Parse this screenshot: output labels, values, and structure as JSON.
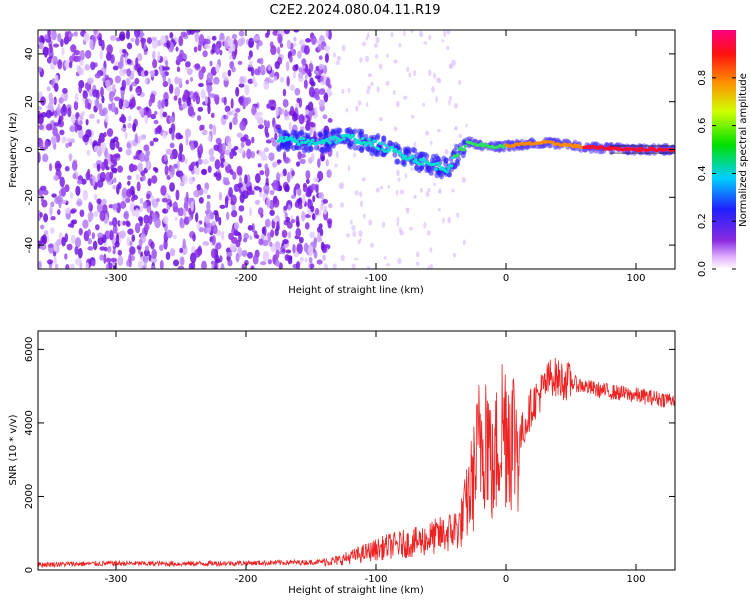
{
  "figure": {
    "title": "C2E2.2024.080.04.11.R19"
  },
  "colors": {
    "background": "#ffffff",
    "axis": "#000000",
    "snr_line": "#ee2222",
    "ridge_line": "#000000"
  },
  "chart_data": [
    {
      "type": "heatmap",
      "title": "",
      "xlabel": "Height of straight line (km)",
      "ylabel": "Frequency (Hz)",
      "xlim": [
        -360,
        130
      ],
      "ylim": [
        -50,
        50
      ],
      "x_ticks": [
        -300,
        -200,
        -100,
        0,
        100
      ],
      "y_ticks": [
        -40,
        -20,
        0,
        20,
        40
      ],
      "colormap": "rainbow (white-purple-blue-cyan-green-yellow-orange-red-magenta)",
      "noise_region_x": [
        -360,
        -135
      ],
      "sparse_region_x": [
        -135,
        -30
      ],
      "signal_ridge": [
        {
          "x": -175,
          "y": 4
        },
        {
          "x": -150,
          "y": 3
        },
        {
          "x": -120,
          "y": 5
        },
        {
          "x": -100,
          "y": 2
        },
        {
          "x": -80,
          "y": -2
        },
        {
          "x": -60,
          "y": -6
        },
        {
          "x": -45,
          "y": -8
        },
        {
          "x": -30,
          "y": 3
        },
        {
          "x": -10,
          "y": 1
        },
        {
          "x": 10,
          "y": 2
        },
        {
          "x": 30,
          "y": 3
        },
        {
          "x": 60,
          "y": 1
        },
        {
          "x": 100,
          "y": 0
        },
        {
          "x": 130,
          "y": 0
        }
      ],
      "grid": false
    },
    {
      "type": "line",
      "title": "",
      "xlabel": "Height of straight line (km)",
      "ylabel": "SNR (10 * v/v)",
      "xlim": [
        -360,
        130
      ],
      "ylim": [
        0,
        6500
      ],
      "x_ticks": [
        -300,
        -200,
        -100,
        0,
        100
      ],
      "y_ticks": [
        0,
        2000,
        4000,
        6000
      ],
      "series": [
        {
          "x": [
            -360,
            -300,
            -250,
            -200,
            -150,
            -130,
            -110,
            -90,
            -70,
            -55,
            -45,
            -35,
            -25,
            -20,
            -15,
            -10,
            -5,
            0,
            10,
            20,
            30,
            35,
            40,
            50,
            60,
            70,
            80,
            90,
            100,
            110,
            120,
            130
          ],
          "values": [
            150,
            180,
            170,
            190,
            210,
            250,
            450,
            650,
            750,
            900,
            1000,
            1200,
            2500,
            3500,
            4000,
            2500,
            3800,
            4000,
            3500,
            4500,
            5000,
            5300,
            5200,
            5100,
            5000,
            4900,
            4850,
            4800,
            4750,
            4700,
            4650,
            4650
          ]
        }
      ],
      "grid": false
    }
  ],
  "colorbar": {
    "label": "Normalized spectral amplitude",
    "range": [
      0,
      1
    ],
    "ticks": [
      "0.0",
      "0.2",
      "0.4",
      "0.6",
      "0.8"
    ]
  }
}
